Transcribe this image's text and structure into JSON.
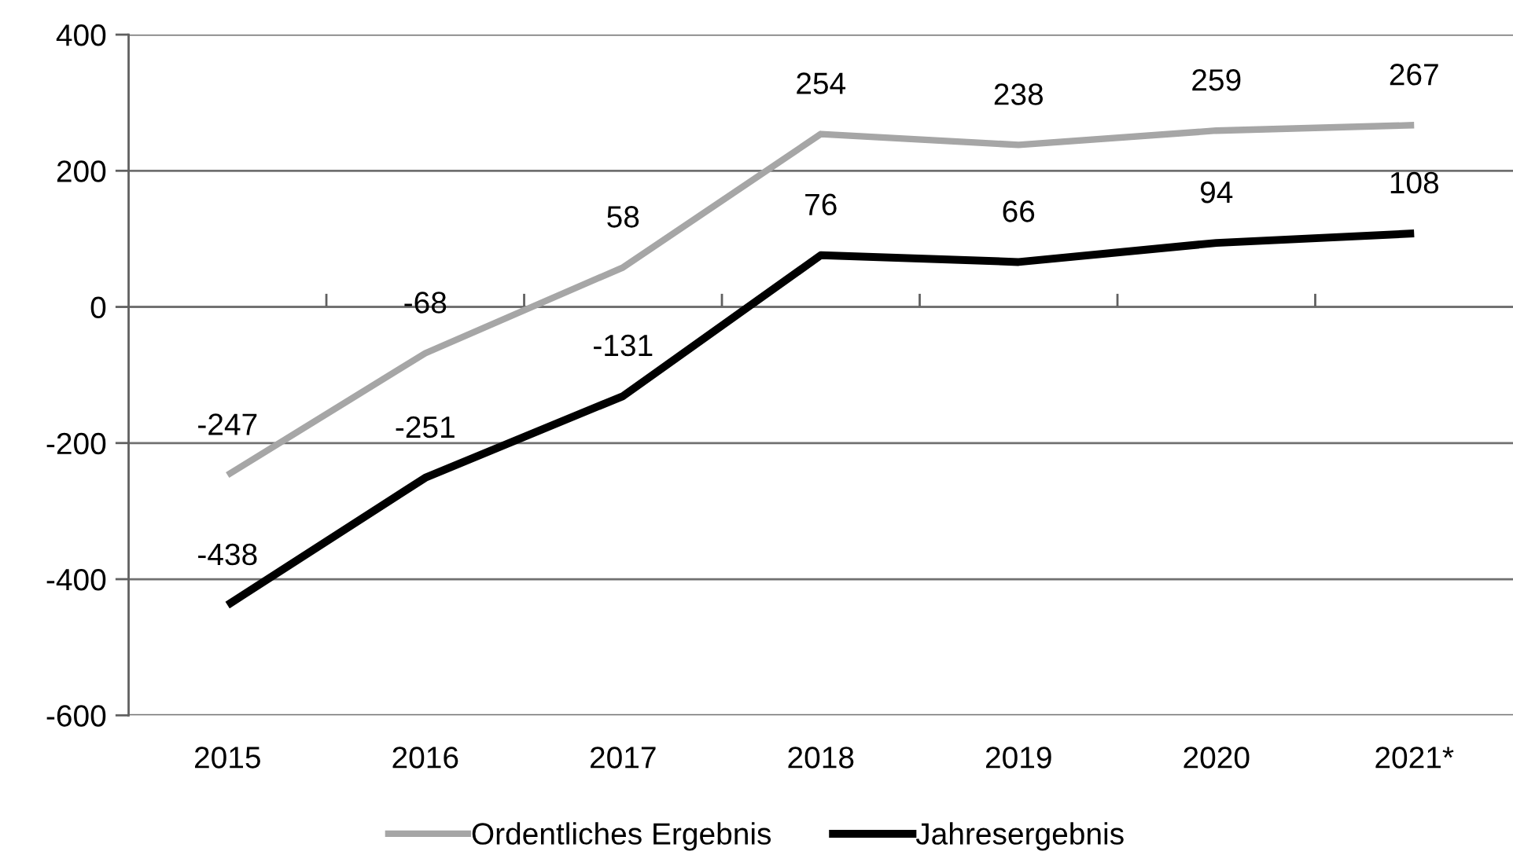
{
  "chart_data": {
    "type": "line",
    "categories": [
      "2015",
      "2016",
      "2017",
      "2018",
      "2019",
      "2020",
      "2021*"
    ],
    "series": [
      {
        "name": "Ordentliches Ergebnis",
        "color": "#a6a6a6",
        "values": [
          -247,
          -68,
          58,
          254,
          238,
          259,
          267
        ]
      },
      {
        "name": "Jahresergebnis",
        "color": "#000000",
        "values": [
          -438,
          -251,
          -131,
          76,
          66,
          94,
          108
        ]
      }
    ],
    "ylim": [
      -600,
      400
    ],
    "yticks": [
      -600,
      -400,
      -200,
      0,
      200,
      400
    ],
    "grid": "y",
    "legend": "bottom",
    "data_labels": true,
    "line_style": "solid"
  }
}
